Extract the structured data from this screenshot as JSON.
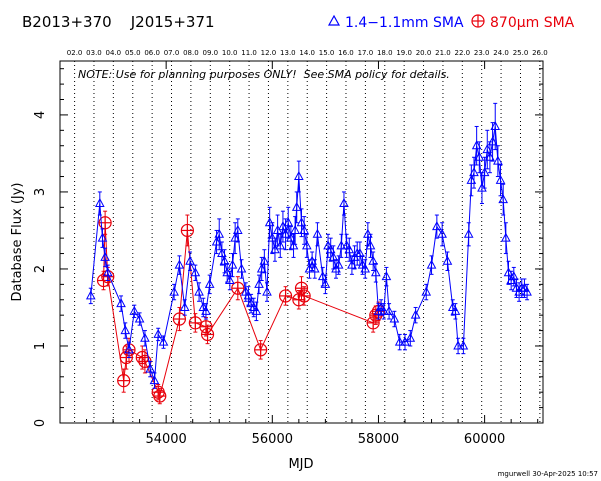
{
  "header": {
    "source_names": "B2013+370    J2015+371",
    "legend_blue": "1.4−1.1mm SMA",
    "legend_red": "870μm SMA",
    "note": "NOTE: Use for planning purposes ONLY!  See SMA policy for details.",
    "footer": "mgurwell 30-Apr-2025 10:57"
  },
  "chart_data": {
    "type": "scatter",
    "xlabel": "MJD",
    "ylabel": "Database Flux (Jy)",
    "xlim": [
      52000,
      61100
    ],
    "ylim": [
      0,
      4.7
    ],
    "x_ticks": [
      54000,
      56000,
      58000,
      60000
    ],
    "y_ticks": [
      0,
      1,
      2,
      3,
      4
    ],
    "top_axis_year_labels": [
      "02.0",
      "03.0",
      "04.0",
      "05.0",
      "06.0",
      "07.0",
      "08.0",
      "09.0",
      "10.0",
      "11.0",
      "12.0",
      "13.0",
      "14.0",
      "15.0",
      "16.0",
      "17.0",
      "18.0",
      "19.0",
      "20.0",
      "21.0",
      "22.0",
      "23.0",
      "24.0",
      "25.0",
      "26.0"
    ],
    "top_axis_year_mjd": [
      52275,
      52640,
      53005,
      53371,
      53736,
      54101,
      54466,
      54832,
      55197,
      55562,
      55927,
      56293,
      56658,
      57023,
      57388,
      57754,
      58119,
      58484,
      58849,
      59215,
      59580,
      59945,
      60310,
      60676,
      61041
    ],
    "colors": {
      "blue": "#0000ff",
      "red": "#e8000b",
      "axis": "#000000"
    },
    "series": [
      {
        "name": "1.4−1.1mm SMA",
        "marker": "triangle",
        "x": [
          52580,
          52750,
          52800,
          52850,
          52900,
          53150,
          53230,
          53300,
          53400,
          53500,
          53600,
          53700,
          53780,
          53850,
          53950,
          54150,
          54250,
          54350,
          54450,
          54550,
          54620,
          54700,
          54750,
          54820,
          54950,
          55000,
          55050,
          55100,
          55150,
          55200,
          55250,
          55300,
          55350,
          55420,
          55500,
          55550,
          55600,
          55650,
          55700,
          55750,
          55800,
          55850,
          55900,
          55950,
          56000,
          56050,
          56100,
          56150,
          56200,
          56250,
          56300,
          56350,
          56400,
          56430,
          56460,
          56500,
          56550,
          56600,
          56650,
          56700,
          56750,
          56800,
          56850,
          56950,
          57000,
          57050,
          57100,
          57150,
          57200,
          57250,
          57300,
          57350,
          57400,
          57450,
          57500,
          57550,
          57600,
          57650,
          57700,
          57750,
          57800,
          57850,
          57900,
          57950,
          58000,
          58050,
          58100,
          58150,
          58200,
          58300,
          58400,
          58500,
          58600,
          58700,
          58900,
          59000,
          59100,
          59200,
          59300,
          59400,
          59450,
          59500,
          59600,
          59700,
          59750,
          59800,
          59850,
          59900,
          59950,
          60000,
          60050,
          60100,
          60150,
          60200,
          60250,
          60300,
          60350,
          60400,
          60450,
          60500,
          60550,
          60600,
          60650,
          60700,
          60750,
          60800
        ],
        "y": [
          1.65,
          2.85,
          2.4,
          2.15,
          1.95,
          1.55,
          1.2,
          0.95,
          1.45,
          1.35,
          1.1,
          0.7,
          0.55,
          1.15,
          1.05,
          1.7,
          2.05,
          1.5,
          2.1,
          1.95,
          1.7,
          1.5,
          1.45,
          1.8,
          2.35,
          2.45,
          2.2,
          2.1,
          1.95,
          1.85,
          2.05,
          2.4,
          2.5,
          2.0,
          1.7,
          1.65,
          1.55,
          1.5,
          1.45,
          1.8,
          2.0,
          2.1,
          1.7,
          2.6,
          2.4,
          2.25,
          2.5,
          2.3,
          2.55,
          2.45,
          2.6,
          2.4,
          2.3,
          2.5,
          2.8,
          3.2,
          2.6,
          2.5,
          2.3,
          2.0,
          2.1,
          2.0,
          2.45,
          1.9,
          1.8,
          2.3,
          2.25,
          2.15,
          2.0,
          2.05,
          2.3,
          2.85,
          2.3,
          2.25,
          2.05,
          2.15,
          2.2,
          2.2,
          2.05,
          2.0,
          2.45,
          2.3,
          2.1,
          1.95,
          1.45,
          1.5,
          1.45,
          1.9,
          1.45,
          1.35,
          1.05,
          1.05,
          1.1,
          1.4,
          1.7,
          2.05,
          2.55,
          2.45,
          2.1,
          1.5,
          1.45,
          1.0,
          1.0,
          2.45,
          3.15,
          3.25,
          3.6,
          3.45,
          3.05,
          3.25,
          3.55,
          3.45,
          3.65,
          3.85,
          3.4,
          3.15,
          2.9,
          2.4,
          1.95,
          1.85,
          1.9,
          1.75,
          1.7,
          1.75,
          1.75,
          1.7
        ],
        "err": [
          0.1,
          0.15,
          0.12,
          0.12,
          0.1,
          0.1,
          0.1,
          0.1,
          0.08,
          0.08,
          0.1,
          0.1,
          0.1,
          0.08,
          0.08,
          0.1,
          0.12,
          0.1,
          0.12,
          0.1,
          0.12,
          0.12,
          0.1,
          0.12,
          0.15,
          0.2,
          0.15,
          0.15,
          0.12,
          0.12,
          0.15,
          0.2,
          0.15,
          0.12,
          0.12,
          0.12,
          0.12,
          0.12,
          0.12,
          0.12,
          0.15,
          0.15,
          0.12,
          0.2,
          0.2,
          0.15,
          0.2,
          0.15,
          0.2,
          0.2,
          0.2,
          0.15,
          0.15,
          0.18,
          0.2,
          0.2,
          0.18,
          0.18,
          0.15,
          0.12,
          0.12,
          0.12,
          0.15,
          0.12,
          0.12,
          0.15,
          0.15,
          0.15,
          0.12,
          0.12,
          0.15,
          0.15,
          0.15,
          0.15,
          0.12,
          0.15,
          0.15,
          0.15,
          0.12,
          0.12,
          0.15,
          0.15,
          0.12,
          0.12,
          0.1,
          0.1,
          0.1,
          0.12,
          0.1,
          0.1,
          0.1,
          0.1,
          0.1,
          0.1,
          0.1,
          0.12,
          0.15,
          0.15,
          0.12,
          0.1,
          0.1,
          0.1,
          0.1,
          0.15,
          0.2,
          0.2,
          0.25,
          0.2,
          0.2,
          0.2,
          0.25,
          0.2,
          0.25,
          0.3,
          0.2,
          0.2,
          0.2,
          0.2,
          0.15,
          0.12,
          0.12,
          0.12,
          0.12,
          0.12,
          0.12,
          0.1
        ]
      },
      {
        "name": "870μm SMA",
        "marker": "circle-plus",
        "x": [
          52820,
          52850,
          52900,
          53200,
          53250,
          53300,
          53550,
          53600,
          53850,
          53880,
          54250,
          54400,
          54550,
          54750,
          54780,
          55350,
          55780,
          56250,
          56500,
          56550,
          56600,
          57900,
          57950,
          58000
        ],
        "y": [
          1.85,
          2.6,
          1.9,
          0.55,
          0.85,
          0.95,
          0.85,
          0.8,
          0.4,
          0.35,
          1.35,
          2.5,
          1.3,
          1.25,
          1.15,
          1.75,
          0.95,
          1.65,
          1.6,
          1.75,
          1.65,
          1.3,
          1.4,
          1.45
        ],
        "err": [
          0.12,
          0.15,
          0.12,
          0.15,
          0.15,
          0.15,
          0.15,
          0.15,
          0.1,
          0.1,
          0.15,
          0.2,
          0.12,
          0.12,
          0.12,
          0.15,
          0.12,
          0.12,
          0.12,
          0.15,
          0.12,
          0.12,
          0.12,
          0.12
        ]
      }
    ]
  }
}
